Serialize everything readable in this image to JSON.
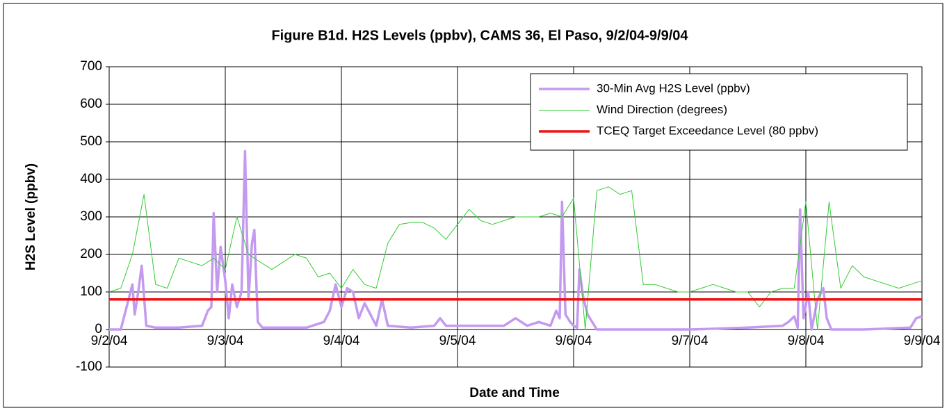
{
  "chart_data": {
    "type": "line",
    "title": "Figure B1d. H2S Levels (ppbv), CAMS 36, El Paso, 9/2/04-9/9/04",
    "x_label": "Date and Time",
    "y_label": "H2S Level (ppbv)",
    "xlim": [
      0,
      7
    ],
    "xticks": [
      {
        "value": 0,
        "label": "9/2/04"
      },
      {
        "value": 1,
        "label": "9/3/04"
      },
      {
        "value": 2,
        "label": "9/4/04"
      },
      {
        "value": 3,
        "label": "9/5/04"
      },
      {
        "value": 4,
        "label": "9/6/04"
      },
      {
        "value": 5,
        "label": "9/7/04"
      },
      {
        "value": 6,
        "label": "9/8/04"
      },
      {
        "value": 7,
        "label": "9/9/04"
      }
    ],
    "ylim": [
      -100,
      700
    ],
    "yticks": [
      -100,
      0,
      100,
      200,
      300,
      400,
      500,
      600,
      700
    ],
    "grid": true,
    "legend": "upper right",
    "series": [
      {
        "name": "30-Min Avg H2S Level (ppbv)",
        "color": "#c49af0",
        "width": 3.5,
        "x": [
          0,
          0.1,
          0.15,
          0.2,
          0.22,
          0.25,
          0.28,
          0.32,
          0.4,
          0.6,
          0.8,
          0.85,
          0.88,
          0.9,
          0.93,
          0.96,
          1.0,
          1.03,
          1.06,
          1.1,
          1.14,
          1.17,
          1.2,
          1.23,
          1.25,
          1.28,
          1.32,
          1.5,
          1.7,
          1.85,
          1.9,
          1.95,
          2.0,
          2.05,
          2.1,
          2.15,
          2.2,
          2.3,
          2.35,
          2.4,
          2.6,
          2.8,
          2.85,
          2.9,
          3.0,
          3.2,
          3.4,
          3.5,
          3.6,
          3.7,
          3.8,
          3.85,
          3.88,
          3.9,
          3.93,
          3.97,
          4.0,
          4.03,
          4.05,
          4.08,
          4.12,
          4.2,
          4.5,
          5.0,
          5.5,
          5.8,
          5.85,
          5.9,
          5.93,
          5.95,
          5.98,
          6.02,
          6.05,
          6.1,
          6.15,
          6.18,
          6.22,
          6.5,
          6.9,
          6.95,
          7.0
        ],
        "values": [
          0,
          0,
          60,
          120,
          40,
          100,
          170,
          10,
          5,
          5,
          10,
          50,
          60,
          310,
          100,
          220,
          130,
          30,
          120,
          60,
          100,
          475,
          80,
          230,
          265,
          20,
          5,
          5,
          5,
          20,
          50,
          120,
          60,
          110,
          100,
          30,
          70,
          10,
          80,
          10,
          5,
          10,
          30,
          10,
          10,
          10,
          10,
          30,
          10,
          20,
          10,
          50,
          30,
          340,
          40,
          20,
          10,
          5,
          160,
          90,
          40,
          0,
          0,
          0,
          5,
          10,
          20,
          35,
          5,
          320,
          30,
          100,
          0,
          80,
          110,
          30,
          0,
          0,
          5,
          30,
          35
        ]
      },
      {
        "name": "Wind Direction (degrees)",
        "color": "#33cc33",
        "width": 1,
        "x": [
          0,
          0.1,
          0.2,
          0.3,
          0.4,
          0.5,
          0.6,
          0.7,
          0.8,
          0.9,
          1,
          1.1,
          1.2,
          1.3,
          1.4,
          1.5,
          1.6,
          1.7,
          1.8,
          1.9,
          2,
          2.1,
          2.2,
          2.3,
          2.4,
          2.5,
          2.6,
          2.7,
          2.8,
          2.9,
          3,
          3.1,
          3.2,
          3.3,
          3.4,
          3.5,
          3.6,
          3.7,
          3.8,
          3.9,
          4,
          4.1,
          4.2,
          4.3,
          4.4,
          4.5,
          4.6,
          4.7,
          4.8,
          4.9,
          5,
          5.1,
          5.2,
          5.3,
          5.4,
          5.5,
          5.6,
          5.7,
          5.8,
          5.9,
          6,
          6.1,
          6.2,
          6.3,
          6.4,
          6.5,
          6.6,
          6.7,
          6.8,
          6.9,
          7
        ],
        "values": [
          100,
          110,
          200,
          360,
          120,
          110,
          190,
          180,
          170,
          190,
          160,
          300,
          200,
          180,
          160,
          180,
          200,
          190,
          140,
          150,
          110,
          160,
          120,
          110,
          230,
          280,
          285,
          285,
          270,
          240,
          280,
          320,
          290,
          280,
          290,
          300,
          300,
          300,
          310,
          300,
          350,
          0,
          370,
          380,
          360,
          370,
          120,
          120,
          110,
          100,
          100,
          110,
          120,
          110,
          100,
          100,
          60,
          100,
          110,
          110,
          340,
          0,
          340,
          110,
          170,
          140,
          130,
          120,
          110,
          120,
          130
        ]
      },
      {
        "name": "TCEQ Target Exceedance Level (80 ppbv)",
        "color": "#ee1111",
        "width": 3.5,
        "x": [
          0,
          7
        ],
        "values": [
          80,
          80
        ]
      }
    ]
  }
}
